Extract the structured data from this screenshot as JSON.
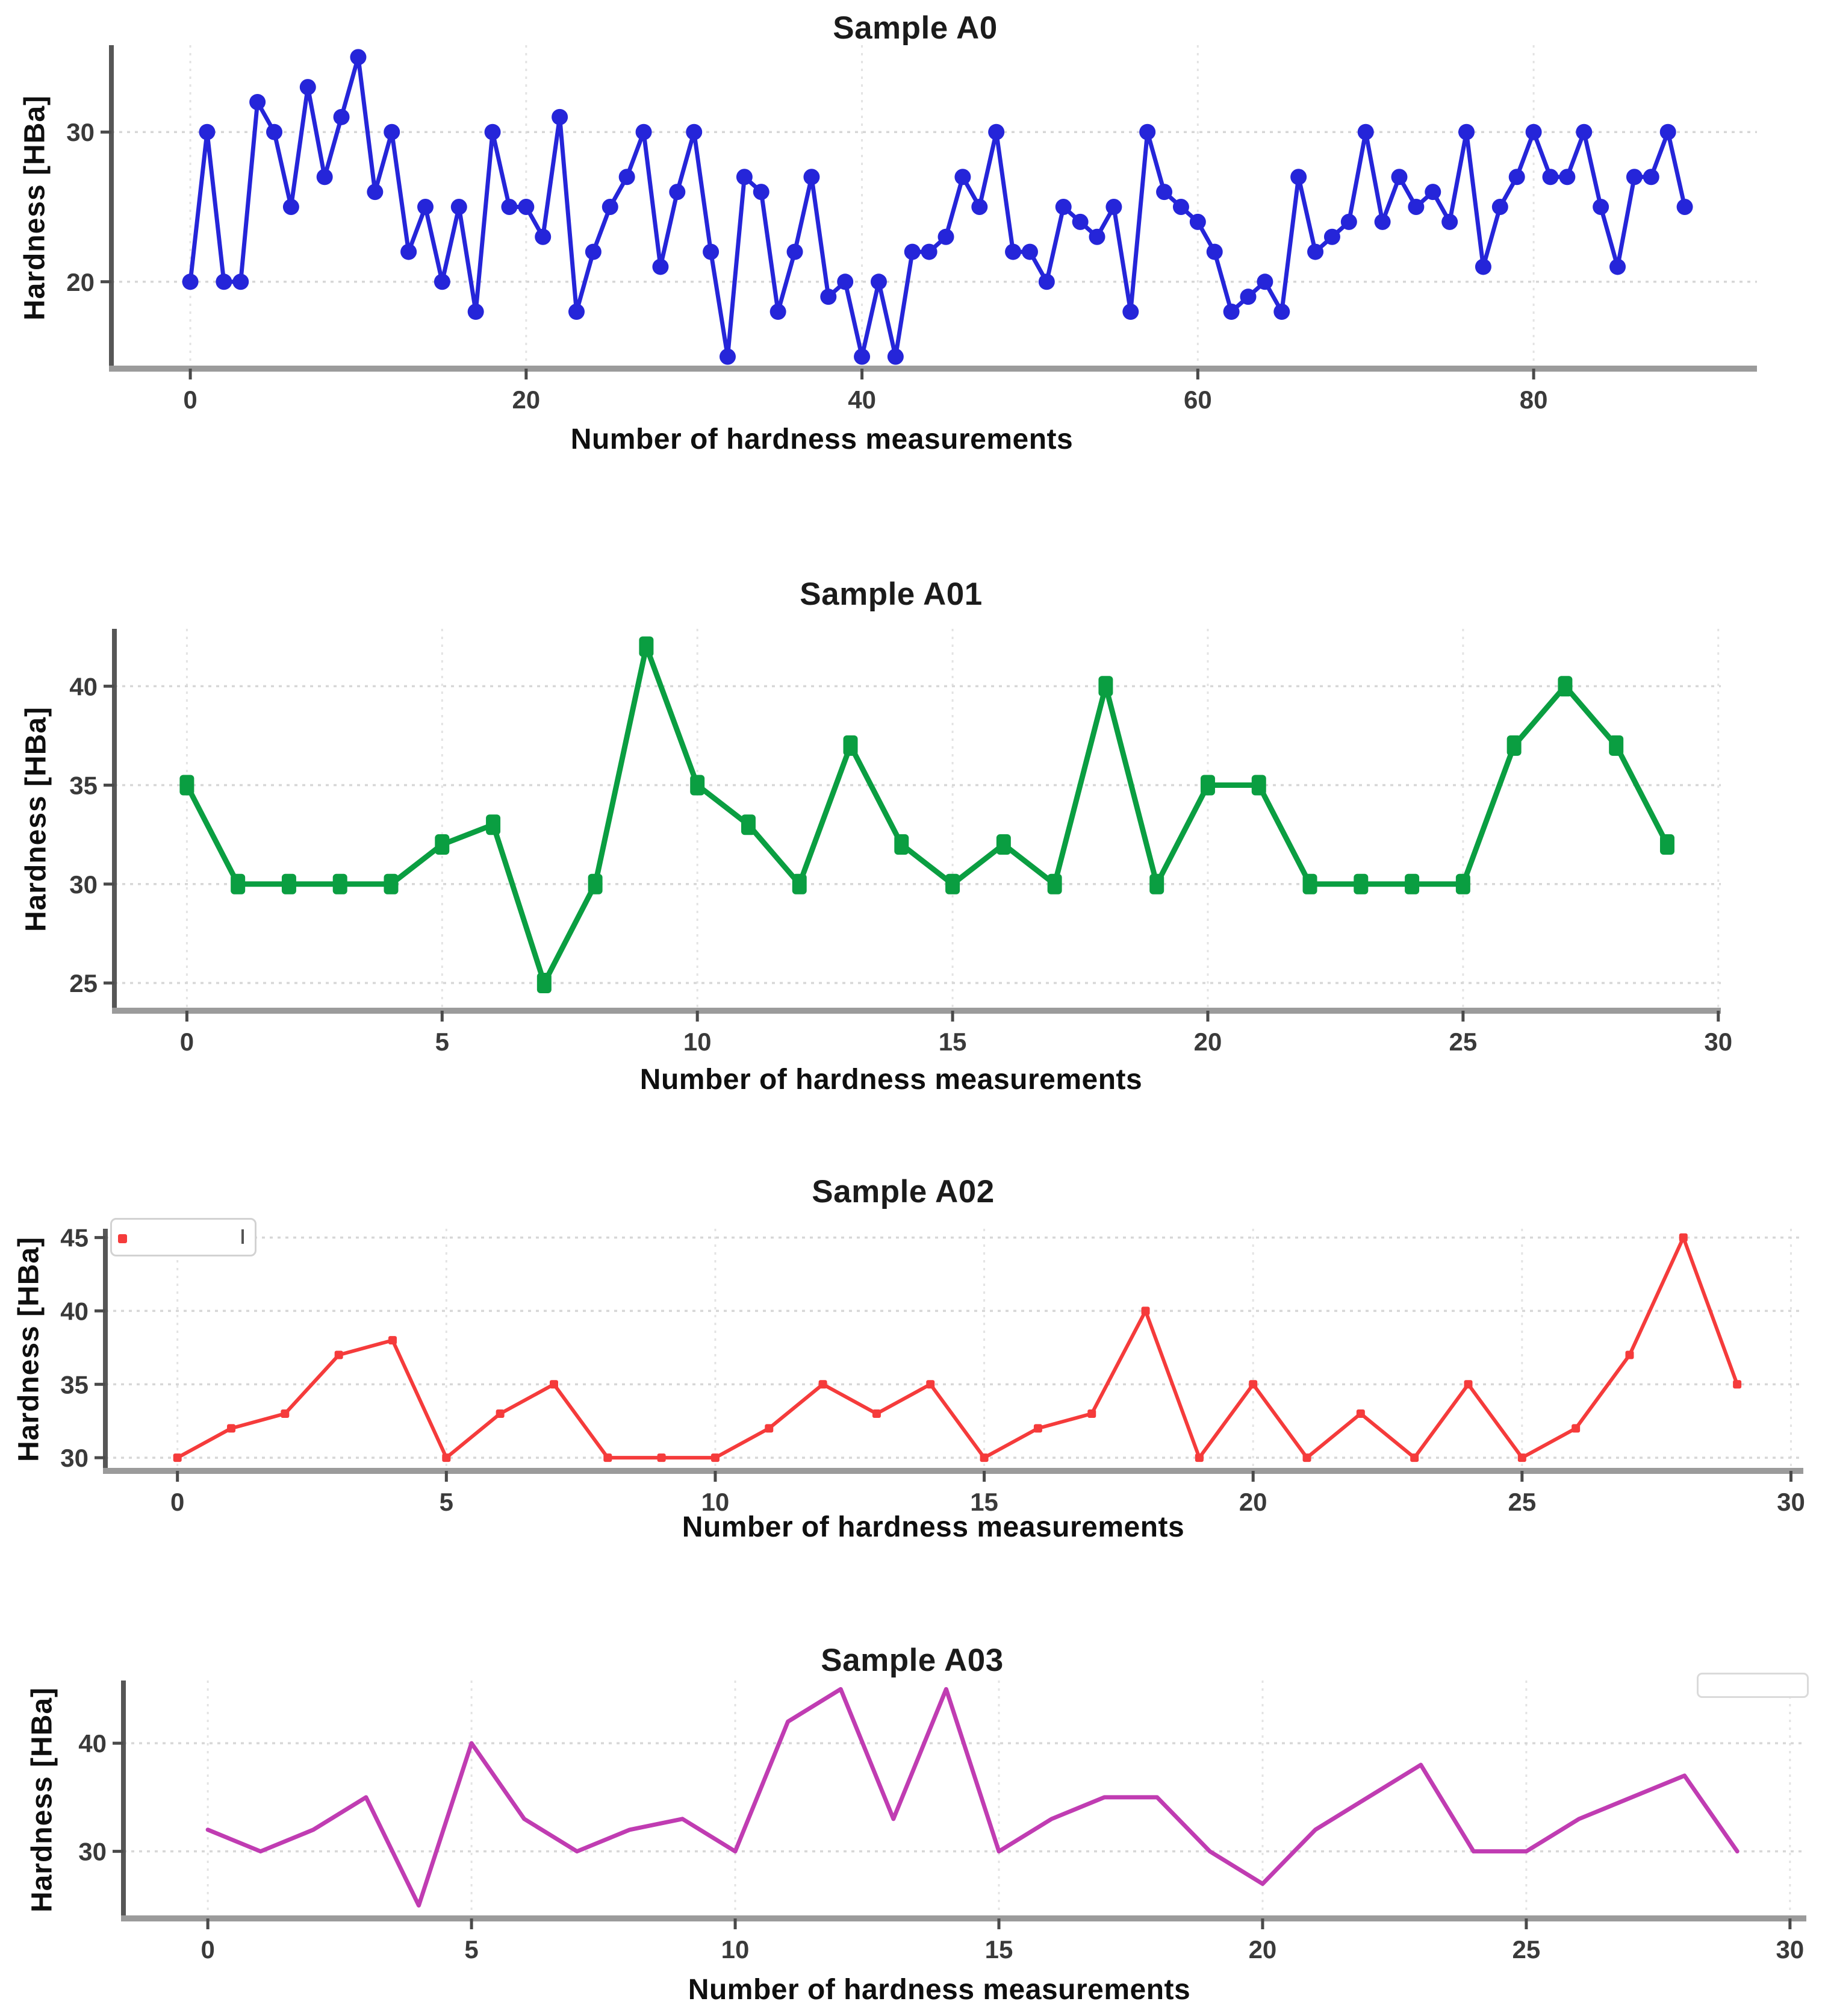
{
  "figure": {
    "background": "#ffffff",
    "tick_label_color": "#3a3a3a",
    "grid_color": "#d7d7d7",
    "axis_color": "#9b9b9b",
    "spine_color": "#565656"
  },
  "chart_data": [
    {
      "type": "line",
      "title": "Sample A0",
      "xlabel": "Number of hardness measurements",
      "ylabel": "Hardness [HBa]",
      "color": "#2525d9",
      "marker": "circle",
      "marker_size": 27,
      "line_width": 7,
      "grid": true,
      "legend_position": "none",
      "x_start": 0,
      "x_step": 1,
      "x_ticks": [
        0,
        20,
        40,
        60,
        80
      ],
      "y_ticks": [
        20,
        30
      ],
      "xlim": [
        -4.7,
        93.3
      ],
      "ylim": [
        14.2,
        35.8
      ],
      "values": [
        20,
        30,
        20,
        20,
        32,
        30,
        25,
        33,
        27,
        31,
        35,
        26,
        30,
        22,
        25,
        20,
        25,
        18,
        30,
        25,
        25,
        23,
        31,
        18,
        22,
        25,
        27,
        30,
        21,
        26,
        30,
        22,
        15,
        27,
        26,
        18,
        22,
        27,
        19,
        20,
        15,
        20,
        15,
        22,
        22,
        23,
        27,
        25,
        30,
        22,
        22,
        20,
        25,
        24,
        23,
        25,
        18,
        30,
        26,
        25,
        24,
        22,
        18,
        19,
        20,
        18,
        27,
        22,
        23,
        24,
        30,
        24,
        27,
        25,
        26,
        24,
        30,
        21,
        25,
        27,
        30,
        27,
        27,
        30,
        25,
        21,
        27,
        27,
        30,
        25
      ]
    },
    {
      "type": "line",
      "title": "Sample A01",
      "xlabel": "Number of hardness measurements",
      "ylabel": "Hardness [HBa]",
      "color": "#0a9e41",
      "marker": "square",
      "marker_size": 28,
      "line_width": 9,
      "grid": true,
      "legend_position": "none",
      "x_start": 0,
      "x_step": 1,
      "x_ticks": [
        0,
        5,
        10,
        15,
        20,
        25,
        30
      ],
      "y_ticks": [
        25,
        30,
        35,
        40
      ],
      "xlim": [
        -1.42,
        30.05
      ],
      "ylim": [
        23.6,
        42.9
      ],
      "values": [
        35,
        30,
        30,
        30,
        30,
        32,
        33,
        25,
        30,
        42,
        35,
        33,
        30,
        37,
        32,
        30,
        32,
        30,
        40,
        30,
        35,
        35,
        30,
        30,
        30,
        30,
        37,
        40,
        37,
        32
      ]
    },
    {
      "type": "line",
      "title": "Sample A02",
      "xlabel": "Number of hardness measurements",
      "ylabel": "Hardness [HBa]",
      "color": "#f53b3b",
      "marker": "square-small",
      "marker_size": 14,
      "line_width": 6,
      "grid": true,
      "legend_position": "stray-fragment-top-left",
      "x_start": 0,
      "x_step": 1,
      "x_ticks": [
        0,
        5,
        10,
        15,
        20,
        25,
        30
      ],
      "y_ticks": [
        30,
        35,
        40,
        45
      ],
      "xlim": [
        -1.34,
        30.23
      ],
      "ylim": [
        29.1,
        45.6
      ],
      "values": [
        30,
        32,
        33,
        37,
        38,
        30,
        33,
        35,
        30,
        30,
        30,
        32,
        35,
        33,
        35,
        30,
        32,
        33,
        40,
        30,
        35,
        30,
        33,
        30,
        35,
        30,
        32,
        37,
        45,
        35
      ]
    },
    {
      "type": "line",
      "title": "Sample A03",
      "xlabel": "Number of hardness measurements",
      "ylabel": "Hardness [HBa]",
      "color": "#c03cb2",
      "marker": "none",
      "marker_size": 0,
      "line_width": 7,
      "grid": true,
      "legend_position": "stray-fragment-top-right",
      "x_start": 0,
      "x_step": 1,
      "x_ticks": [
        0,
        5,
        10,
        15,
        20,
        25,
        30
      ],
      "y_ticks": [
        30,
        40
      ],
      "xlim": [
        -1.6,
        30.31
      ],
      "ylim": [
        23.8,
        45.8
      ],
      "values": [
        32,
        30,
        32,
        35,
        25,
        40,
        33,
        30,
        32,
        33,
        30,
        42,
        45,
        33,
        45,
        30,
        33,
        35,
        35,
        30,
        27,
        32,
        35,
        38,
        30,
        30,
        33,
        35,
        37,
        30
      ]
    }
  ]
}
